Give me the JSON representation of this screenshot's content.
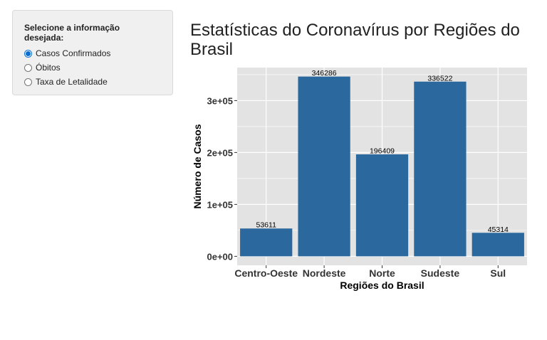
{
  "sidebar": {
    "heading": "Selecione a informação desejada:",
    "options": [
      {
        "label": "Casos Confirmados",
        "checked": true
      },
      {
        "label": "Óbitos",
        "checked": false
      },
      {
        "label": "Taxa de Letalidade",
        "checked": false
      }
    ]
  },
  "main": {
    "title": "Estatísticas do Coronavírus por Regiões do Brasil"
  },
  "chart_data": {
    "type": "bar",
    "categories": [
      "Centro-Oeste",
      "Nordeste",
      "Norte",
      "Sudeste",
      "Sul"
    ],
    "values": [
      53611,
      346286,
      196409,
      336522,
      45314
    ],
    "data_labels": [
      "53611",
      "346286",
      "196409",
      "336522",
      "45314"
    ],
    "xlabel": "Regiões do Brasil",
    "ylabel": "Número de Casos",
    "yticks": [
      0,
      100000,
      200000,
      300000
    ],
    "ytick_labels": [
      "0e+00",
      "1e+05",
      "2e+05",
      "3e+05"
    ],
    "ylim": [
      -17314,
      363600
    ],
    "grid": true,
    "bar_color": "#2b689e",
    "panel_color": "#e3e3e3",
    "grid_color": "#ffffff"
  }
}
